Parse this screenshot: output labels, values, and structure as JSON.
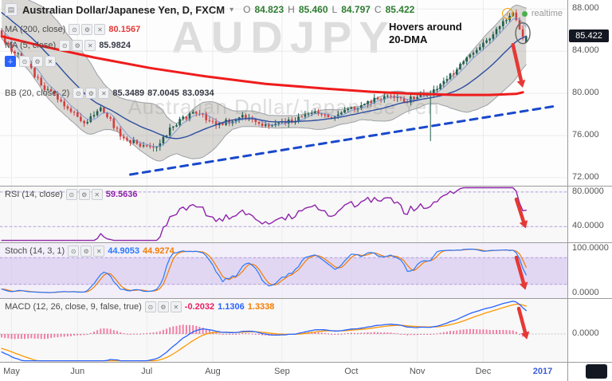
{
  "header": {
    "symbol_title": "Australian Dollar/Japanese Yen, D, FXCM",
    "dropdown_caret": "▾",
    "ohlc": {
      "o_label": "O",
      "o_value": "84.823",
      "h_label": "H",
      "h_value": "85.460",
      "l_label": "L",
      "l_value": "84.797",
      "c_label": "C",
      "c_value": "85.422"
    },
    "realtime_label": "realtime",
    "info_icon": "i"
  },
  "watermark": {
    "symbol": "AUDJPY",
    "description": "Australian Dollar/Japanese Yen"
  },
  "annotation": {
    "line1": "Hovers around",
    "line2": "20-DMA"
  },
  "legends": {
    "ma200": {
      "label": "MA (200, close)",
      "value": "80.1567",
      "value_color": "#e53935"
    },
    "ma5": {
      "label": "MA (5, close)",
      "value": "85.9824",
      "value_color": "#363a45"
    },
    "bb": {
      "label": "BB (20, close, 2)",
      "v1": "85.3489",
      "v2": "87.0045",
      "v3": "83.0934",
      "value_color": "#363a45"
    },
    "rsi": {
      "label": "RSI (14, close)",
      "value": "59.5636",
      "value_color": "#8e24aa"
    },
    "stoch": {
      "label": "Stoch (14, 3, 1)",
      "v1": "44.9053",
      "v2": "44.9274",
      "v1_color": "#2979ff",
      "v2_color": "#f57c00"
    },
    "macd": {
      "label": "MACD (12, 26, close, 9, false, true)",
      "v1": "-0.2032",
      "v2": "1.1306",
      "v3": "1.3338",
      "v1_color": "#e91e63",
      "v2_color": "#2962ff",
      "v3_color": "#f57c00"
    }
  },
  "price_scale": {
    "labels": [
      {
        "text": "88.000",
        "pane": "price",
        "value": 88
      },
      {
        "text": "84.000",
        "pane": "price",
        "value": 84
      },
      {
        "text": "80.000",
        "pane": "price",
        "value": 80
      },
      {
        "text": "76.000",
        "pane": "price",
        "value": 76
      },
      {
        "text": "72.000",
        "pane": "price",
        "value": 72
      },
      {
        "text": "80.0000",
        "pane": "rsi",
        "value": 80
      },
      {
        "text": "40.0000",
        "pane": "rsi",
        "value": 40
      },
      {
        "text": "100.0000",
        "pane": "stoch",
        "value": 100
      },
      {
        "text": "0.0000",
        "pane": "stoch",
        "value": 0
      },
      {
        "text": "0.0000",
        "pane": "macd",
        "value": 0
      }
    ],
    "badge": {
      "text": "85.422",
      "value": 85.422,
      "bg": "#131722",
      "fg": "#ffffff"
    }
  },
  "time_axis": {
    "months": [
      {
        "label": "May",
        "slot": 3
      },
      {
        "label": "Jun",
        "slot": 23
      },
      {
        "label": "Jul",
        "slot": 44
      },
      {
        "label": "Aug",
        "slot": 64
      },
      {
        "label": "Sep",
        "slot": 85
      },
      {
        "label": "Oct",
        "slot": 106
      },
      {
        "label": "Nov",
        "slot": 126
      },
      {
        "label": "Dec",
        "slot": 146
      }
    ],
    "year": {
      "label": "2017",
      "slot": 164,
      "color": "#3b5bdb"
    }
  },
  "chart_data": {
    "type": "candlestick",
    "title": "AUD/JPY Daily (FXCM)",
    "slots": 172,
    "n_candles": 160,
    "ylim": [
      71.24,
      88.85
    ],
    "gridline_prices": [
      88,
      84,
      80,
      76,
      72
    ],
    "price_anchors": [
      [
        0,
        85.8
      ],
      [
        3,
        84.5
      ],
      [
        8,
        83.0
      ],
      [
        14,
        80.5
      ],
      [
        20,
        79.0
      ],
      [
        26,
        77.2
      ],
      [
        31,
        78.8
      ],
      [
        37,
        76.0
      ],
      [
        42,
        75.2
      ],
      [
        47,
        74.6
      ],
      [
        53,
        77.0
      ],
      [
        60,
        78.3
      ],
      [
        66,
        77.0
      ],
      [
        75,
        77.8
      ],
      [
        82,
        76.8
      ],
      [
        88,
        77.3
      ],
      [
        95,
        78.2
      ],
      [
        102,
        77.8
      ],
      [
        106,
        78.4
      ],
      [
        112,
        79.2
      ],
      [
        118,
        79.6
      ],
      [
        124,
        79.3
      ],
      [
        126,
        79.6
      ],
      [
        130,
        80.0
      ],
      [
        134,
        80.8
      ],
      [
        138,
        82.0
      ],
      [
        142,
        83.2
      ],
      [
        146,
        84.3
      ],
      [
        150,
        85.5
      ],
      [
        154,
        87.0
      ],
      [
        156,
        87.7
      ],
      [
        158,
        86.3
      ],
      [
        159,
        85.4
      ]
    ],
    "spike": {
      "idx": 130,
      "low": 75.5
    },
    "last": {
      "o": 84.823,
      "h": 85.46,
      "l": 84.797,
      "c": 85.422
    },
    "colors": {
      "up": "#1f5f4f",
      "down": "#d14040",
      "ma20": "#2c4ea0",
      "ma5": "#6b8fd6",
      "bb_fill": "rgba(140,132,120,0.30)",
      "bb_edge": "#9aa0a6",
      "ma200_line": "#ef1c1c",
      "trendline": "#1848cc",
      "arrow": "#e53935",
      "rsi": "#8e24aa",
      "stoch_k": "#2979ff",
      "stoch_d": "#f57c00",
      "macd_line": "#2962ff",
      "macd_signal": "#ff9800",
      "macd_hist": "#e91e63",
      "band_fill": "rgba(146,104,210,0.18)",
      "level_dash": "#b39ddb"
    },
    "overlays": {
      "ma200_path": [
        [
          0,
          85.4
        ],
        [
          12,
          84.5
        ],
        [
          28,
          83.4
        ],
        [
          45,
          82.4
        ],
        [
          62,
          81.6
        ],
        [
          80,
          80.9
        ],
        [
          98,
          80.45
        ],
        [
          112,
          80.15
        ],
        [
          126,
          79.95
        ],
        [
          138,
          79.85
        ],
        [
          148,
          79.85
        ],
        [
          156,
          79.95
        ],
        [
          158,
          80.1
        ]
      ],
      "trendline_dashed": {
        "from": [
          39,
          72.3
        ],
        "to": [
          168,
          78.8
        ]
      },
      "bollinger": {
        "length": 20,
        "mult": 2
      },
      "ma_fast": 5,
      "ma_slow": 20
    },
    "indicators": {
      "rsi": {
        "length": 14,
        "levels": [
          80,
          40
        ],
        "ylim": [
          21.8,
          86.4
        ]
      },
      "stoch": {
        "length": 14,
        "smooth": 3,
        "levels": [
          80,
          20
        ],
        "ylim": [
          -10.7,
          112.5
        ]
      },
      "macd": {
        "fast": 12,
        "slow": 26,
        "signal": 9,
        "ylim": [
          -1.458,
          1.833
        ]
      }
    }
  }
}
